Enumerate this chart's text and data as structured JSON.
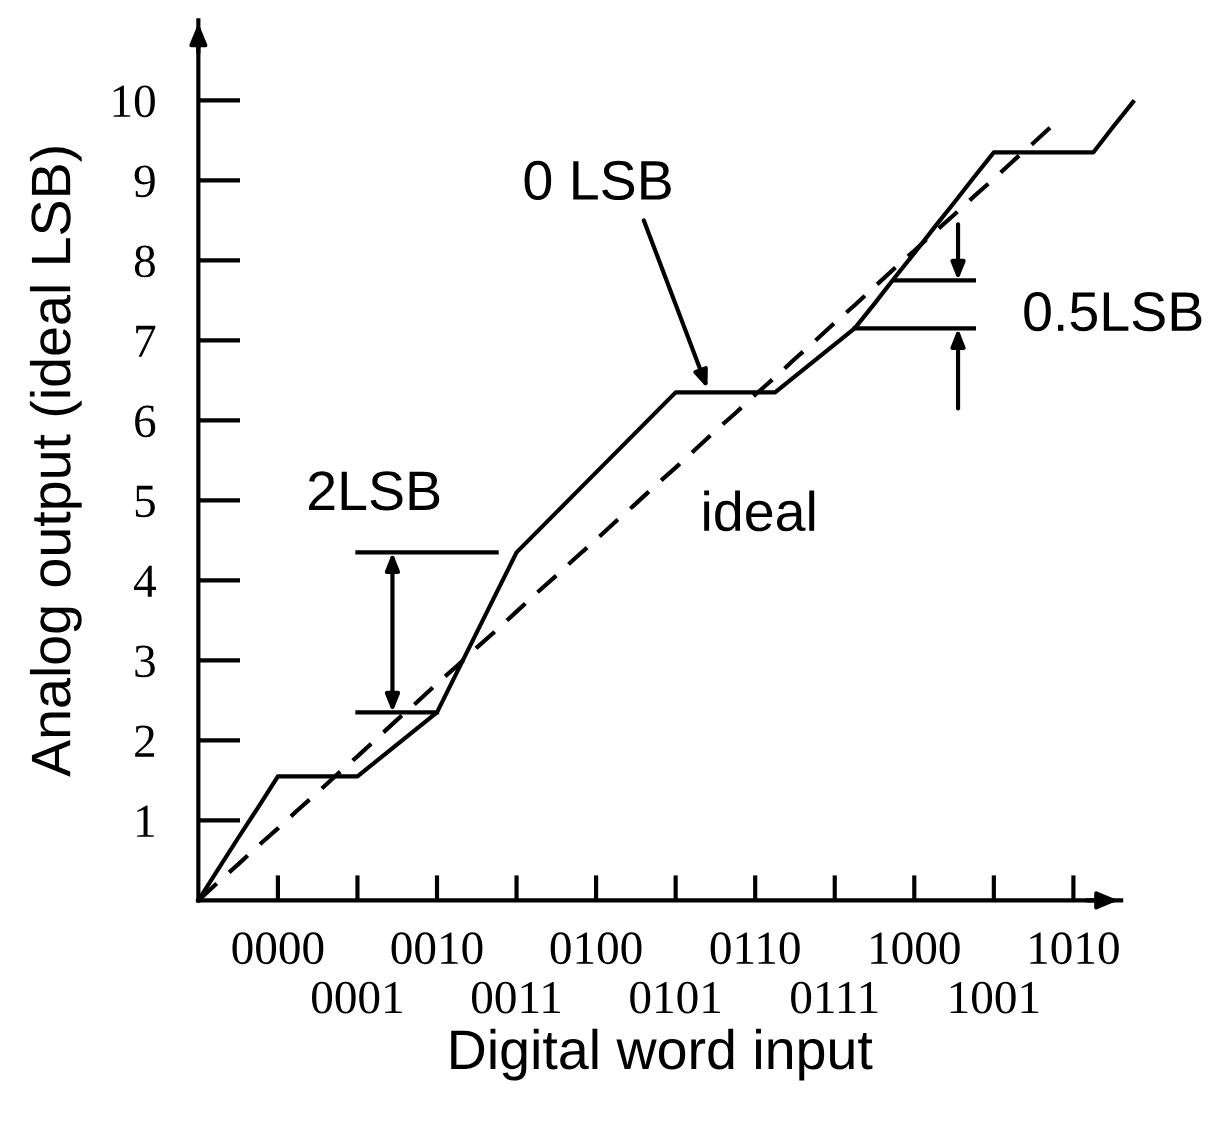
{
  "chart_data": {
    "type": "line",
    "xlabel": "Digital word input",
    "ylabel": "Analog output (ideal LSB)",
    "ylim": [
      0,
      11
    ],
    "yticks": [
      1,
      2,
      3,
      4,
      5,
      6,
      7,
      8,
      9,
      10
    ],
    "categories": [
      null,
      null,
      null,
      null,
      "0000",
      null,
      null,
      null,
      "0001",
      null,
      null,
      null,
      "0010",
      null,
      null,
      null,
      "0011",
      null,
      null,
      null,
      "0100",
      null,
      null,
      null,
      "0101",
      null,
      null,
      null,
      "0110",
      null,
      null,
      null,
      "0111",
      null,
      null,
      null,
      "1000",
      null,
      null,
      null,
      "1001",
      null,
      null,
      null,
      "1010",
      null,
      null,
      null
    ],
    "series": [
      {
        "color": "#000000",
        "line_style": "solid",
        "values": [
          0,
          0.39,
          0.78,
          1.16,
          1.55,
          1.55,
          1.55,
          1.55,
          1.55,
          1.75,
          1.95,
          2.15,
          2.35,
          2.85,
          3.35,
          3.85,
          4.35,
          4.6,
          4.85,
          5.1,
          5.35,
          5.6,
          5.85,
          6.1,
          6.35,
          6.35,
          6.35,
          6.35,
          6.35,
          6.35,
          6.55,
          6.75,
          6.95,
          7.15,
          7.46,
          7.78,
          8.09,
          8.41,
          8.72,
          9.04,
          9.35,
          9.35,
          9.35,
          9.35,
          9.35,
          9.35,
          9.67,
          9.98
        ]
      },
      {
        "color": "#000000",
        "line_style": "dashed",
        "values": [
          0,
          0.23,
          0.45,
          0.68,
          0.9,
          1.13,
          1.35,
          1.58,
          1.8,
          2.03,
          2.26,
          2.48,
          2.71,
          2.93,
          3.16,
          3.38,
          3.61,
          3.84,
          4.06,
          4.29,
          4.51,
          4.74,
          4.96,
          5.19,
          5.41,
          5.64,
          5.87,
          6.09,
          6.32,
          6.54,
          6.77,
          6.99,
          7.22,
          7.44,
          7.67,
          7.9,
          8.12,
          8.35,
          8.57,
          8.8,
          9.02,
          9.25,
          9.47,
          9.7,
          null,
          null,
          null,
          null
        ]
      },
      {
        "color": "#000000",
        "line_style": "solid",
        "values": [
          null,
          null,
          null,
          null,
          null,
          null,
          null,
          null,
          4.35,
          4.35,
          4.35,
          4.35,
          4.35,
          4.35,
          4.35,
          4.35,
          null,
          null,
          null,
          null,
          null,
          null,
          null,
          null,
          null,
          null,
          null,
          null,
          null,
          null,
          null,
          null,
          null,
          null,
          null,
          null,
          null,
          null,
          null,
          null,
          null,
          null,
          null,
          null,
          null,
          null,
          null,
          null
        ]
      },
      {
        "color": "#000000",
        "line_style": "solid",
        "values": [
          null,
          null,
          null,
          null,
          null,
          null,
          null,
          null,
          2.35,
          2.35,
          2.35,
          2.35,
          2.35,
          null,
          null,
          null,
          null,
          null,
          null,
          null,
          null,
          null,
          null,
          null,
          null,
          null,
          null,
          null,
          null,
          null,
          null,
          null,
          null,
          null,
          null,
          null,
          null,
          null,
          null,
          null,
          null,
          null,
          null,
          null,
          null,
          null,
          null,
          null
        ]
      },
      {
        "color": "#000000",
        "line_style": "solid",
        "values": [
          null,
          null,
          null,
          null,
          null,
          null,
          null,
          null,
          null,
          null,
          null,
          null,
          null,
          null,
          null,
          null,
          null,
          null,
          null,
          null,
          null,
          null,
          null,
          null,
          null,
          null,
          null,
          null,
          null,
          null,
          null,
          null,
          null,
          null,
          null,
          7.75,
          7.75,
          7.75,
          7.75,
          7.75,
          null,
          null,
          null,
          null,
          null,
          null,
          null,
          null
        ]
      },
      {
        "color": "#000000",
        "line_style": "solid",
        "values": [
          null,
          null,
          null,
          null,
          null,
          null,
          null,
          null,
          null,
          null,
          null,
          null,
          null,
          null,
          null,
          null,
          null,
          null,
          null,
          null,
          null,
          null,
          null,
          null,
          null,
          null,
          null,
          null,
          null,
          null,
          null,
          null,
          null,
          7.15,
          7.15,
          7.15,
          7.15,
          7.15,
          7.15,
          7.15,
          null,
          null,
          null,
          null,
          null,
          null,
          null,
          null
        ]
      }
    ],
    "annotations": [
      "0 LSB",
      "2LSB",
      "0.5LSB",
      "ideal"
    ]
  }
}
